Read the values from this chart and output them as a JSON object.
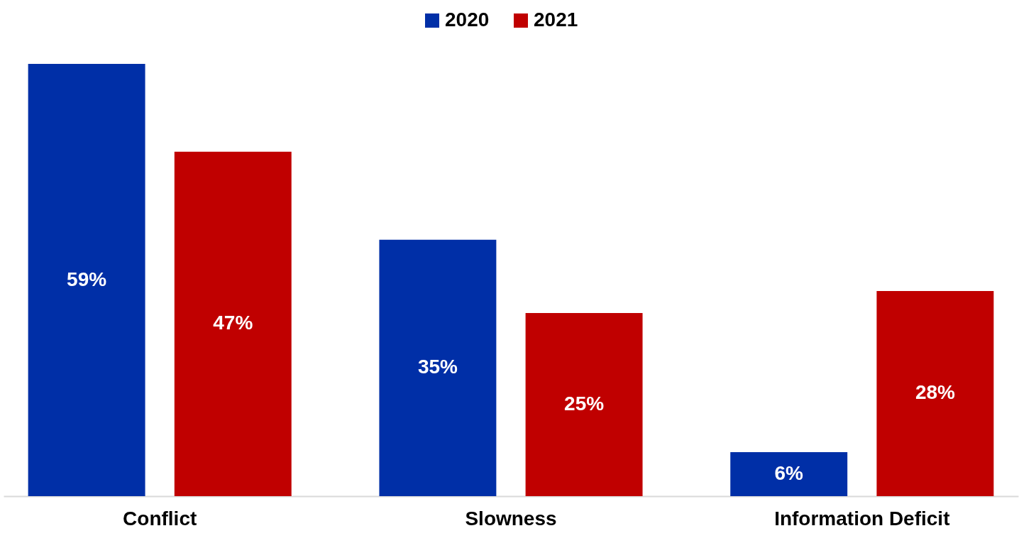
{
  "chart_data": {
    "type": "bar",
    "categories": [
      "Conflict",
      "Slowness",
      "Information Deficit"
    ],
    "series": [
      {
        "name": "2020",
        "color": "#002fa7",
        "values": [
          59,
          35,
          6
        ],
        "value_labels": [
          "59%",
          "35%",
          "6%"
        ]
      },
      {
        "name": "2021",
        "color": "#c00000",
        "values": [
          47,
          25,
          28
        ],
        "value_labels": [
          "47%",
          "25%",
          "28%"
        ]
      }
    ],
    "legend": "top",
    "grid": false
  }
}
